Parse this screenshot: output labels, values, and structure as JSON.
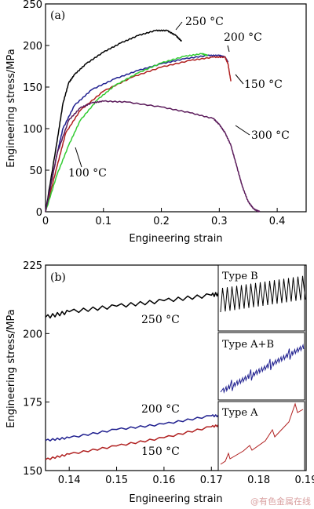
{
  "chart_data": [
    {
      "panel": "(a)",
      "type": "line",
      "xlabel": "Engineering strain",
      "ylabel": "Engineering stress/MPa",
      "xlim": [
        0,
        0.45
      ],
      "ylim": [
        0,
        250
      ],
      "xticks": [
        "0",
        "0.1",
        "0.2",
        "0.3",
        "0.4"
      ],
      "xtick_values": [
        0,
        0.1,
        0.2,
        0.3,
        0.4
      ],
      "yticks": [
        "0",
        "50",
        "100",
        "150",
        "200",
        "250"
      ],
      "ytick_values": [
        0,
        50,
        100,
        150,
        200,
        250
      ],
      "grid": false,
      "series": [
        {
          "name": "250 °C",
          "color": "#000000",
          "x": [
            0,
            0.02,
            0.03,
            0.04,
            0.05,
            0.07,
            0.1,
            0.13,
            0.16,
            0.19,
            0.21,
            0.225,
            0.235
          ],
          "y": [
            0,
            85,
            130,
            155,
            165,
            178,
            192,
            203,
            212,
            218,
            218,
            212,
            205
          ]
        },
        {
          "name": "200 °C",
          "color": "#1f1f8f",
          "x": [
            0,
            0.02,
            0.03,
            0.05,
            0.08,
            0.12,
            0.16,
            0.2,
            0.24,
            0.28,
            0.3,
            0.31,
            0.315
          ],
          "y": [
            0,
            70,
            100,
            128,
            147,
            160,
            170,
            178,
            184,
            188,
            188,
            186,
            180
          ]
        },
        {
          "name": "150 °C",
          "color": "#b01f1f",
          "x": [
            0,
            0.02,
            0.035,
            0.06,
            0.1,
            0.15,
            0.2,
            0.25,
            0.29,
            0.31,
            0.315,
            0.32
          ],
          "y": [
            0,
            55,
            95,
            122,
            145,
            162,
            174,
            182,
            186,
            186,
            178,
            157
          ]
        },
        {
          "name": "100 °C",
          "color": "#33cc33",
          "x": [
            0,
            0.02,
            0.04,
            0.06,
            0.09,
            0.12,
            0.16,
            0.2,
            0.24,
            0.27,
            0.28
          ],
          "y": [
            0,
            45,
            80,
            110,
            135,
            152,
            167,
            179,
            187,
            190,
            188
          ]
        },
        {
          "name": "300 °C",
          "color": "#5a1a5a",
          "x": [
            0,
            0.02,
            0.04,
            0.06,
            0.08,
            0.1,
            0.14,
            0.2,
            0.25,
            0.29,
            0.3,
            0.31,
            0.32,
            0.33,
            0.34,
            0.35,
            0.36,
            0.37
          ],
          "y": [
            0,
            70,
            110,
            125,
            131,
            133,
            132,
            126,
            119,
            112,
            105,
            95,
            80,
            55,
            30,
            12,
            3,
            0
          ]
        }
      ],
      "annotations": [
        "(a)",
        "250 °C",
        "200 °C",
        "150 °C",
        "100 °C",
        "300 °C"
      ]
    },
    {
      "panel": "(b)",
      "type": "line",
      "xlabel": "Engineering strain",
      "ylabel": "Engineering stress/MPa",
      "xlim": [
        0.135,
        0.19
      ],
      "ylim": [
        150,
        225
      ],
      "xticks": [
        "0.14",
        "0.15",
        "0.16",
        "0.17",
        "0.18",
        "0.19"
      ],
      "xtick_values": [
        0.14,
        0.15,
        0.16,
        0.17,
        0.18,
        0.19
      ],
      "yticks": [
        "150",
        "175",
        "200",
        "225"
      ],
      "ytick_values": [
        150,
        175,
        200,
        225
      ],
      "grid": false,
      "series": [
        {
          "name": "250 °C",
          "color": "#000000",
          "x": [
            0.135,
            0.14,
            0.15,
            0.16,
            0.17,
            0.173
          ],
          "y": [
            206,
            208,
            210,
            212,
            214,
            215
          ]
        },
        {
          "name": "200 °C",
          "color": "#1f1f8f",
          "x": [
            0.135,
            0.14,
            0.15,
            0.16,
            0.17,
            0.173
          ],
          "y": [
            161,
            162,
            165,
            167,
            170,
            170
          ]
        },
        {
          "name": "150 °C",
          "color": "#b01f1f",
          "x": [
            0.135,
            0.14,
            0.15,
            0.16,
            0.17,
            0.173
          ],
          "y": [
            154,
            156,
            159,
            162,
            166,
            167
          ]
        }
      ],
      "annotations": [
        "(b)",
        "250 °C",
        "200 °C",
        "150 °C"
      ],
      "insets": [
        {
          "label": "Type B",
          "color": "#000000"
        },
        {
          "label": "Type A+B",
          "color": "#1f1f8f"
        },
        {
          "label": "Type A",
          "color": "#b01f1f"
        }
      ]
    }
  ],
  "watermark": "@有色金属在线"
}
